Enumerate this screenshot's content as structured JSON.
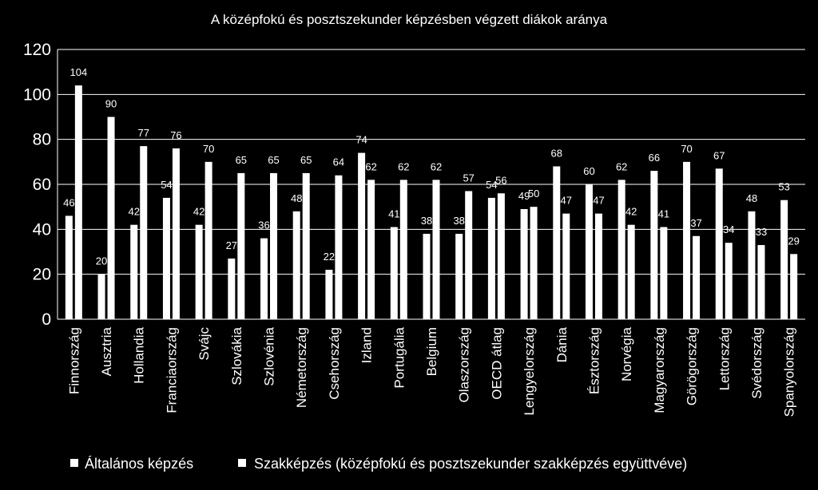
{
  "chart_data": {
    "type": "bar",
    "title": "A középfokú és posztszekunder képzésben végzett diákok aránya",
    "categories": [
      "Finnország",
      "Ausztria",
      "Hollandia",
      "Franciaország",
      "Svájc",
      "Szlovákia",
      "Szlovénia",
      "Németország",
      "Csehország",
      "Izland",
      "Portugália",
      "Belgium",
      "Olaszország",
      "OECD átlag",
      "Lengyelország",
      "Dánia",
      "Észtország",
      "Norvégia",
      "Magyarország",
      "Görögország",
      "Lettország",
      "Svédország",
      "Spanyolország"
    ],
    "series": [
      {
        "name": "Általános képzés",
        "values": [
          46,
          20,
          42,
          54,
          42,
          27,
          36,
          48,
          22,
          74,
          41,
          38,
          38,
          54,
          49,
          68,
          60,
          62,
          66,
          70,
          67,
          48,
          53
        ]
      },
      {
        "name": "Szakképzés (középfokú és posztszekunder szakképzés együttvéve)",
        "values": [
          104,
          90,
          77,
          76,
          70,
          65,
          65,
          65,
          64,
          62,
          62,
          62,
          57,
          56,
          50,
          47,
          47,
          42,
          41,
          37,
          34,
          33,
          29
        ]
      }
    ],
    "ylim": [
      0,
      120
    ],
    "yticks": [
      "0",
      "20",
      "40",
      "60",
      "80",
      "100",
      "120"
    ],
    "grid": true,
    "legend": "bottom",
    "colors": {
      "background": "#000000",
      "bars": "#ffffff",
      "grid": "#ffffff",
      "text": "#ffffff"
    }
  }
}
